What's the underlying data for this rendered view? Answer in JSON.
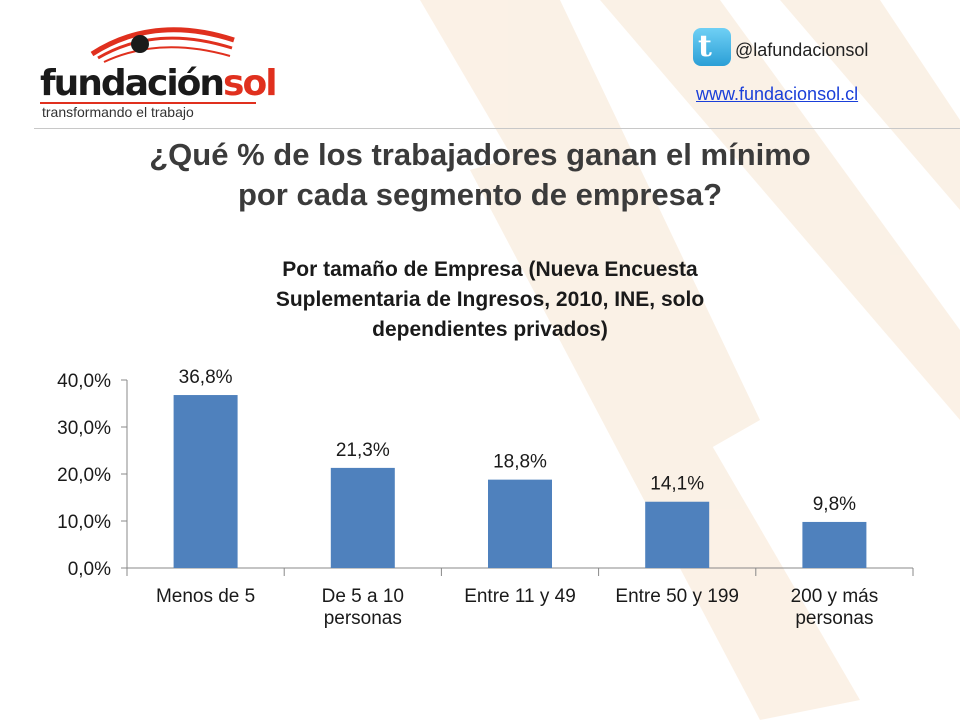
{
  "header": {
    "logo_word_dark": "fundación",
    "logo_word_red": "sol",
    "logo_tagline": "transformando el trabajo",
    "twitter_handle": "@lafundacionsol",
    "website": "www.fundacionsol.cl"
  },
  "slide": {
    "title_line1": "¿Qué % de los trabajadores ganan el mínimo",
    "title_line2": "por cada segmento de empresa?"
  },
  "colors": {
    "bar": "#4f81bd",
    "accent_red": "#e0301e",
    "text": "#1a1a1a"
  },
  "chart_data": {
    "type": "bar",
    "title_lines": [
      "Por tamaño de Empresa (Nueva Encuesta",
      "Suplementaria de Ingresos, 2010, INE, solo",
      "dependientes privados)"
    ],
    "categories": [
      [
        "Menos de 5"
      ],
      [
        "De 5 a 10",
        "personas"
      ],
      [
        "Entre 11 y 49"
      ],
      [
        "Entre 50 y 199"
      ],
      [
        "200 y más",
        "personas"
      ]
    ],
    "values": [
      36.8,
      21.3,
      18.8,
      14.1,
      9.8
    ],
    "data_labels": [
      "36,8%",
      "21,3%",
      "18,8%",
      "14,1%",
      "9,8%"
    ],
    "y_ticks": [
      0,
      10,
      20,
      30,
      40
    ],
    "y_tick_labels": [
      "0,0%",
      "10,0%",
      "20,0%",
      "30,0%",
      "40,0%"
    ],
    "ylim": [
      0,
      40
    ],
    "grid": false,
    "legend": "none"
  }
}
